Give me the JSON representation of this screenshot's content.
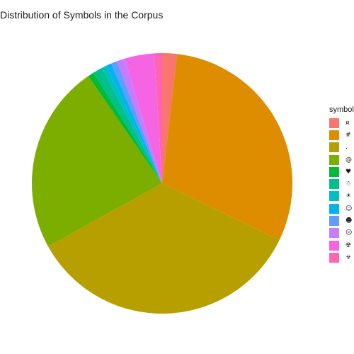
{
  "chart_data": {
    "type": "pie",
    "title": "Distribution of Symbols in the Corpus",
    "legend_title": "symbol",
    "legend_position": "right",
    "grid": false,
    "slices": [
      {
        "label": "¤",
        "value": 1.9,
        "color": "#F8766D"
      },
      {
        "label": "#",
        "value": 31.3,
        "color": "#DE8C00"
      },
      {
        "label": ".",
        "value": 35.9,
        "color": "#B79F00"
      },
      {
        "label": "@",
        "value": 24.2,
        "color": "#7CAE00"
      },
      {
        "label": "♥",
        "value": 0.8,
        "color": "#00BA38"
      },
      {
        "label": "☃",
        "value": 1.2,
        "color": "#00C08B"
      },
      {
        "label": "☀",
        "value": 0.6,
        "color": "#00BFC4"
      },
      {
        "label": "☺",
        "value": 0.7,
        "color": "#00B4F0"
      },
      {
        "label": "☻",
        "value": 0.8,
        "color": "#619CFF"
      },
      {
        "label": "☹",
        "value": 1.0,
        "color": "#C77CFF"
      },
      {
        "label": "☢",
        "value": 3.8,
        "color": "#F564E3"
      },
      {
        "label": "☣",
        "value": 1.0,
        "color": "#FF64B0"
      }
    ]
  }
}
